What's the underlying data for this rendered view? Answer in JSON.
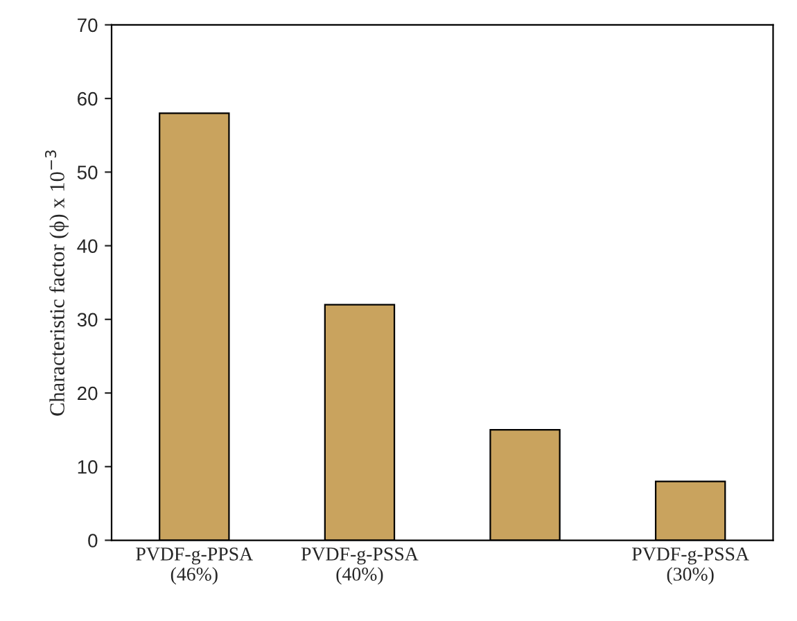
{
  "chart_data": {
    "type": "bar",
    "categories": [
      "PVDF-g-PPSA\n(46%)",
      "PVDF-g-PSSA\n(40%)",
      null,
      "PVDF-g-PSSA\n(30%)"
    ],
    "values": [
      58,
      32,
      15,
      8
    ],
    "color": "#c9a35e",
    "ylabel": "Characteristic factor (ϕ) x 10$^{−3}$",
    "ylim": [
      0,
      70
    ],
    "yticks": [
      0,
      10,
      20,
      30,
      40,
      50,
      60,
      70
    ],
    "grid": false
  }
}
